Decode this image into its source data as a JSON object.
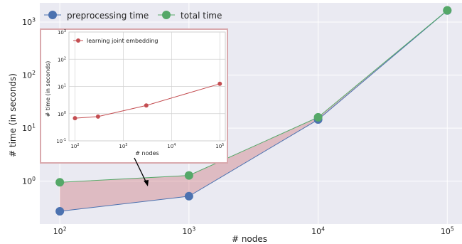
{
  "chart_data": [
    {
      "type": "line",
      "xlabel": "# nodes",
      "ylabel": "# time (in seconds)",
      "xscale": "log",
      "yscale": "log",
      "xlim": [
        70,
        130000
      ],
      "ylim": [
        0.155,
        2300
      ],
      "x": [
        100,
        1000,
        10000,
        100000
      ],
      "x_tick_labels": [
        "10^2",
        "10^3",
        "10^4",
        "10^5"
      ],
      "y_ticks": [
        1,
        10,
        100,
        1000
      ],
      "y_tick_labels": [
        "10^0",
        "10^1",
        "10^2",
        "10^3"
      ],
      "grid": true,
      "legend_position": "top-left",
      "series": [
        {
          "name": "preprocessing time",
          "color": "#4c72b0",
          "values": [
            0.27,
            0.52,
            14.5,
            1650
          ]
        },
        {
          "name": "total time",
          "color": "#55a868",
          "values": [
            0.95,
            1.28,
            16.0,
            1660
          ]
        }
      ],
      "fill_between": {
        "series": [
          "preprocessing time",
          "total time"
        ],
        "color": "#c44e52"
      },
      "annotation": "arrow from inset to shaded region"
    },
    {
      "type": "line",
      "position": "inset top-left",
      "xlabel": "# nodes",
      "ylabel": "# time (in seconds)",
      "xscale": "log",
      "yscale": "log",
      "xlim": [
        75,
        130000
      ],
      "ylim": [
        0.1,
        1000
      ],
      "x_ticks": [
        100,
        1000,
        10000,
        100000
      ],
      "x_tick_labels": [
        "10^2",
        "10^3",
        "10^4",
        "10^5"
      ],
      "y_ticks": [
        0.1,
        1,
        10,
        100,
        1000
      ],
      "y_tick_labels": [
        "10^-1",
        "10^0",
        "10^1",
        "10^2",
        "10^3"
      ],
      "grid": true,
      "legend_position": "top-left",
      "series": [
        {
          "name": "learning joint embedding",
          "color": "#c44e52",
          "x": [
            100,
            300,
            3000,
            100000
          ],
          "values": [
            0.68,
            0.78,
            2.0,
            12.5
          ]
        }
      ]
    }
  ]
}
